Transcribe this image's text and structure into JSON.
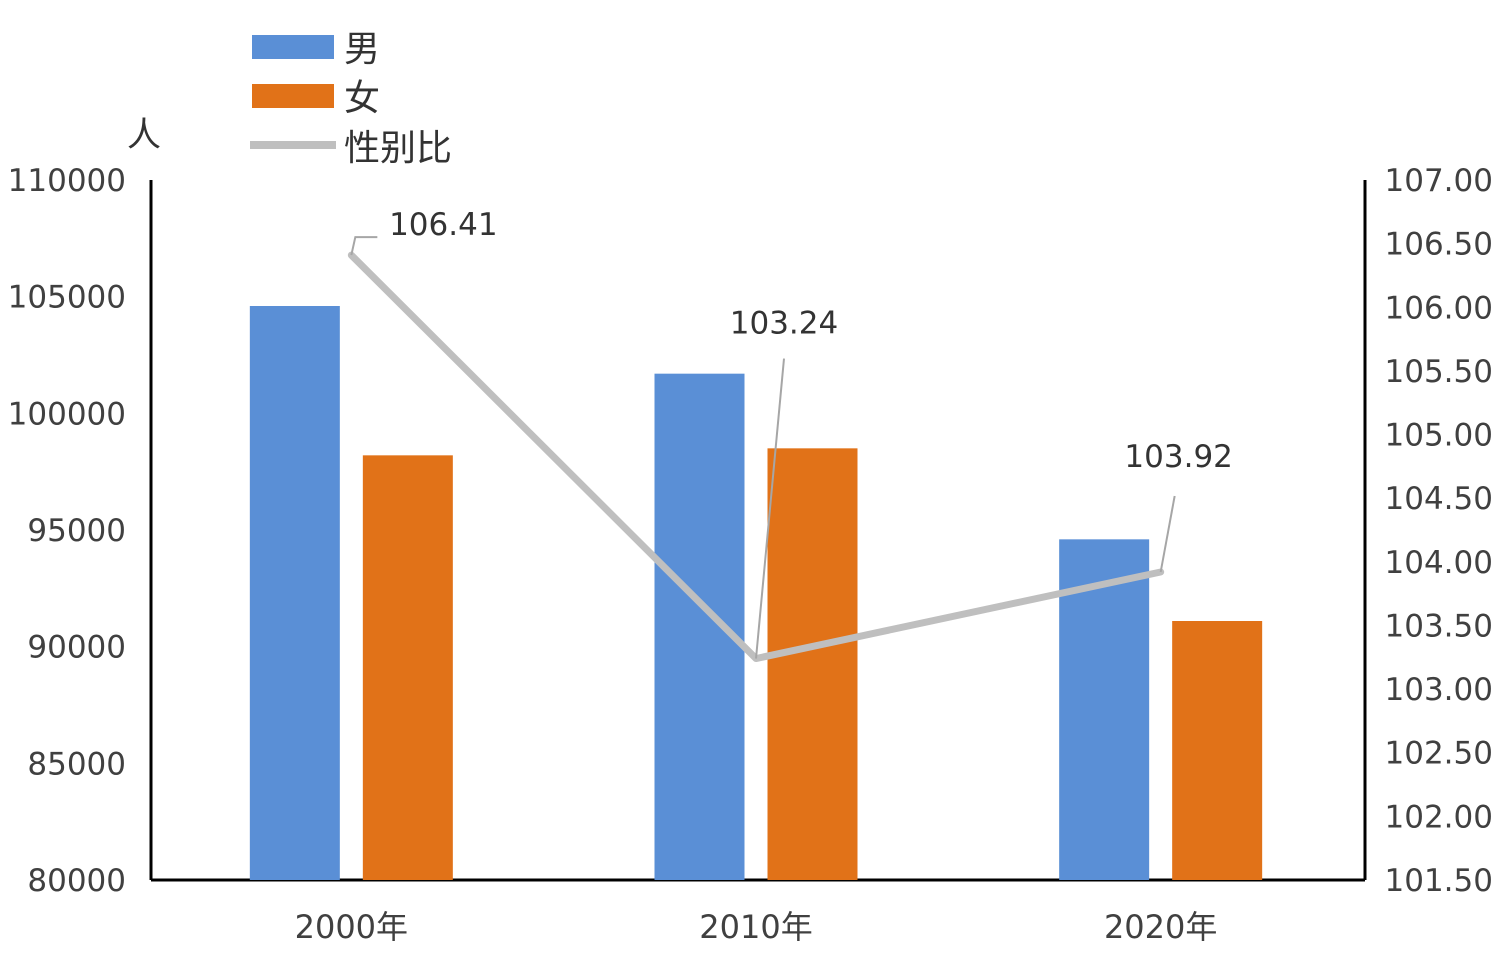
{
  "chart_data": {
    "type": "bar",
    "categories": [
      "2000年",
      "2010年",
      "2020年"
    ],
    "series": [
      {
        "name": "男",
        "type": "bar",
        "axis": "left",
        "color": "#5a8fd6",
        "values": [
          104600,
          101700,
          94600
        ]
      },
      {
        "name": "女",
        "type": "bar",
        "axis": "left",
        "color": "#e17218",
        "values": [
          98200,
          98500,
          91100
        ]
      },
      {
        "name": "性别比",
        "type": "line",
        "axis": "right",
        "color": "#bfbfbf",
        "values": [
          106.41,
          103.24,
          103.92
        ],
        "data_labels": [
          "106.41",
          "103.24",
          "103.92"
        ]
      }
    ],
    "left_axis": {
      "unit_label": "人",
      "range": [
        80000,
        110000
      ],
      "ticks": [
        "80000",
        "85000",
        "90000",
        "95000",
        "100000",
        "105000",
        "110000"
      ]
    },
    "right_axis": {
      "range": [
        101.5,
        107.0
      ],
      "ticks": [
        "101.50",
        "102.00",
        "102.50",
        "103.00",
        "103.50",
        "104.00",
        "104.50",
        "105.00",
        "105.50",
        "106.00",
        "106.50",
        "107.00"
      ]
    },
    "legend": {
      "position": "top-left",
      "items": [
        {
          "label": "男",
          "kind": "box",
          "color": "#5a8fd6"
        },
        {
          "label": "女",
          "kind": "box",
          "color": "#e17218"
        },
        {
          "label": "性别比",
          "kind": "line",
          "color": "#bfbfbf"
        }
      ]
    },
    "grid": false
  }
}
